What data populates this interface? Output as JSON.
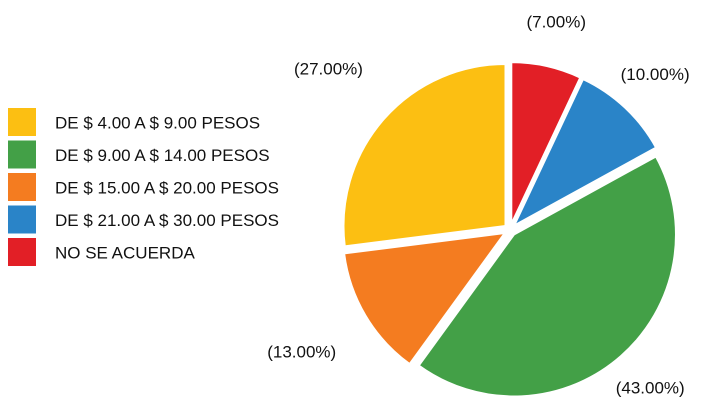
{
  "chart_data": {
    "type": "pie",
    "categories": [
      "DE $ 4.00 A $ 9.00 PESOS",
      "DE $ 9.00 A $ 14.00 PESOS",
      "DE $ 15.00 A $ 20.00 PESOS",
      "DE $ 21.00 A $ 30.00 PESOS",
      "NO SE ACUERDA"
    ],
    "values": [
      27,
      43,
      13,
      10,
      7
    ],
    "value_labels": [
      "(27.00%)",
      "(43.00%)",
      "(13.00%)",
      "(10.00%)",
      "(7.00%)"
    ],
    "colors": [
      "#fcbf12",
      "#43a047",
      "#f47c20",
      "#2a84c8",
      "#e21f26"
    ],
    "legend": "left"
  }
}
